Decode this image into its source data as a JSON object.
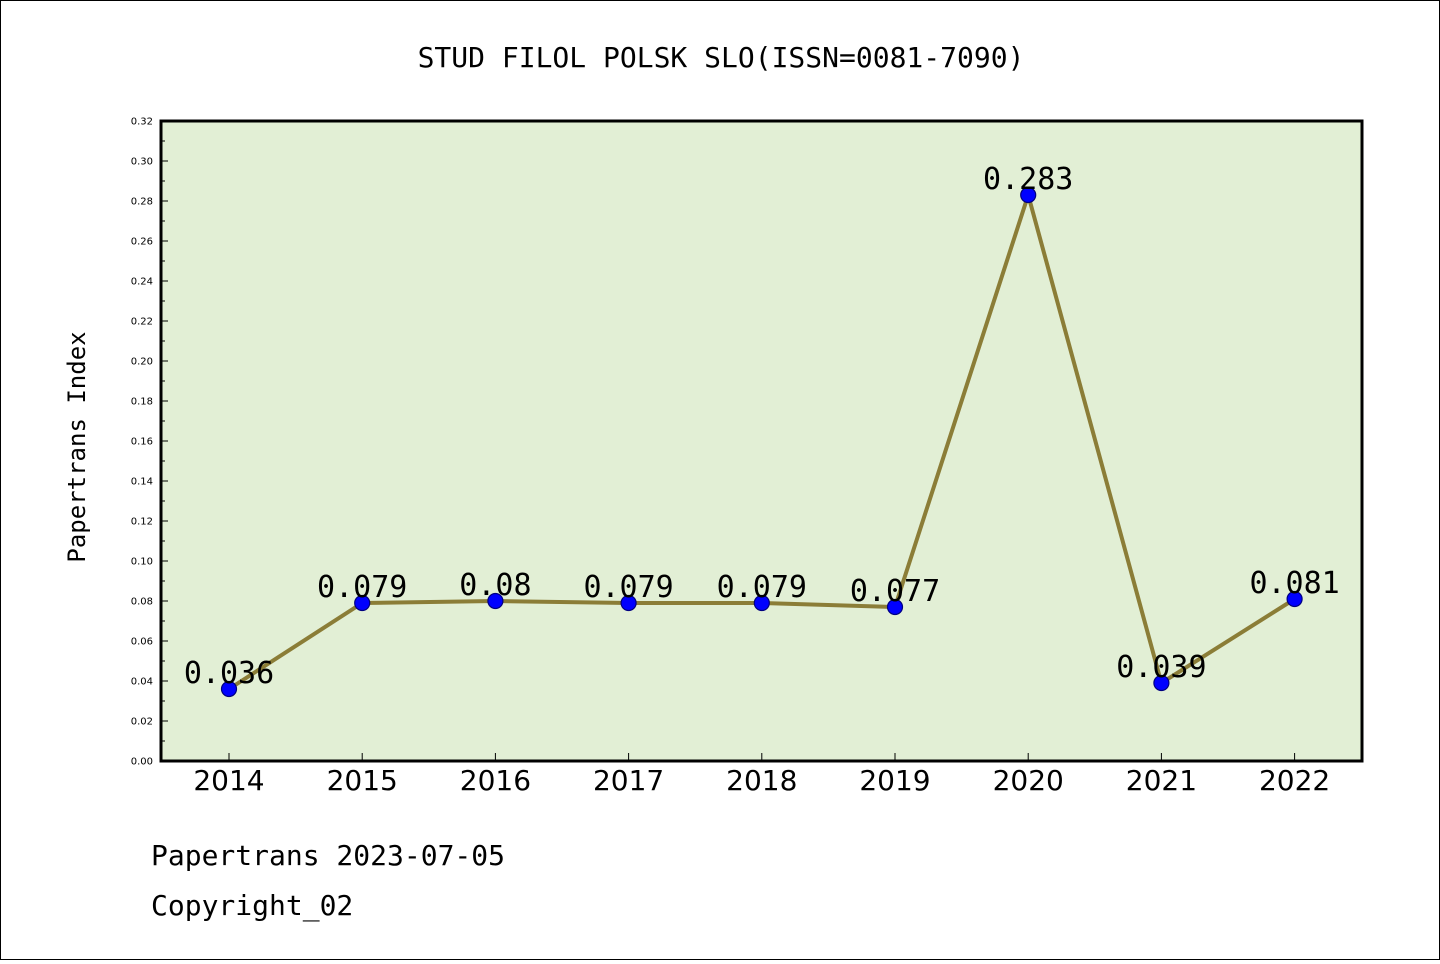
{
  "chart_data": {
    "type": "line",
    "title": "STUD FILOL POLSK SLO(ISSN=0081-7090)",
    "xlabel": "",
    "ylabel": "Papertrans Index",
    "categories": [
      "2014",
      "2015",
      "2016",
      "2017",
      "2018",
      "2019",
      "2020",
      "2021",
      "2022"
    ],
    "values": [
      0.036,
      0.079,
      0.08,
      0.079,
      0.079,
      0.077,
      0.283,
      0.039,
      0.081
    ],
    "data_labels": [
      "0.036",
      "0.079",
      "0.08",
      "0.079",
      "0.079",
      "0.077",
      "0.283",
      "0.039",
      "0.081"
    ],
    "ylim": [
      0,
      0.32
    ],
    "y_ticks": [
      "0.00",
      "0.02",
      "0.04",
      "0.06",
      "0.08",
      "0.10",
      "0.12",
      "0.14",
      "0.16",
      "0.18",
      "0.20",
      "0.22",
      "0.24",
      "0.26",
      "0.28",
      "0.30",
      "0.32"
    ],
    "grid": false,
    "legend": "none",
    "colors": {
      "plot_background": "#e2efd5",
      "line": "#8b7d37",
      "marker": "#0000ff",
      "marker_edge": "#000080"
    }
  },
  "footer": {
    "date_line": "Papertrans 2023-07-05",
    "copyright_line": "Copyright_02"
  }
}
